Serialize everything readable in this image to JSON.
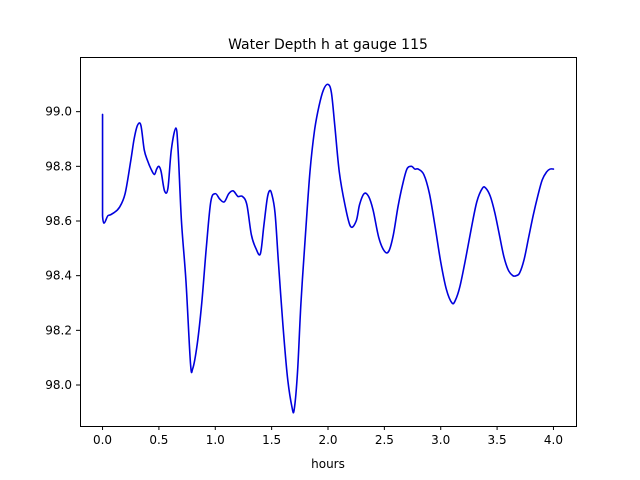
{
  "chart_data": {
    "type": "line",
    "title": "Water Depth h at gauge 115",
    "xlabel": "hours",
    "ylabel": "",
    "xlim": [
      -0.2,
      4.2
    ],
    "ylim": [
      97.85,
      99.2
    ],
    "xticks": [
      0.0,
      0.5,
      1.0,
      1.5,
      2.0,
      2.5,
      3.0,
      3.5,
      4.0
    ],
    "xtick_labels": [
      "0.0",
      "0.5",
      "1.0",
      "1.5",
      "2.0",
      "2.5",
      "3.0",
      "3.5",
      "4.0"
    ],
    "yticks": [
      98.0,
      98.2,
      98.4,
      98.6,
      98.8,
      99.0
    ],
    "ytick_labels": [
      "98.0",
      "98.2",
      "98.4",
      "98.6",
      "98.8",
      "99.0"
    ],
    "grid": false,
    "series": [
      {
        "color": "#0000dd",
        "x": [
          0.0,
          0.0,
          0.05,
          0.1,
          0.15,
          0.2,
          0.25,
          0.28,
          0.31,
          0.34,
          0.37,
          0.4,
          0.43,
          0.46,
          0.48,
          0.5,
          0.52,
          0.55,
          0.58,
          0.61,
          0.65,
          0.67,
          0.7,
          0.74,
          0.78,
          0.8,
          0.84,
          0.88,
          0.92,
          0.96,
          1.0,
          1.04,
          1.08,
          1.12,
          1.16,
          1.2,
          1.24,
          1.28,
          1.32,
          1.36,
          1.4,
          1.43,
          1.46,
          1.48,
          1.5,
          1.53,
          1.56,
          1.6,
          1.64,
          1.68,
          1.7,
          1.73,
          1.76,
          1.8,
          1.84,
          1.88,
          1.92,
          1.96,
          2.0,
          2.03,
          2.06,
          2.1,
          2.15,
          2.2,
          2.25,
          2.28,
          2.32,
          2.36,
          2.4,
          2.45,
          2.5,
          2.54,
          2.58,
          2.62,
          2.66,
          2.7,
          2.74,
          2.77,
          2.8,
          2.85,
          2.9,
          2.95,
          3.0,
          3.05,
          3.1,
          3.13,
          3.17,
          3.22,
          3.27,
          3.32,
          3.37,
          3.4,
          3.44,
          3.48,
          3.52,
          3.56,
          3.6,
          3.64,
          3.67,
          3.7,
          3.74,
          3.78,
          3.82,
          3.86,
          3.9,
          3.94,
          3.97,
          4.0
        ],
        "y": [
          98.99,
          98.62,
          98.62,
          98.63,
          98.65,
          98.7,
          98.82,
          98.9,
          98.95,
          98.95,
          98.86,
          98.82,
          98.79,
          98.77,
          98.79,
          98.8,
          98.78,
          98.71,
          98.72,
          98.86,
          98.94,
          98.86,
          98.6,
          98.38,
          98.08,
          98.06,
          98.15,
          98.3,
          98.5,
          98.67,
          98.7,
          98.68,
          98.67,
          98.7,
          98.71,
          98.69,
          98.69,
          98.66,
          98.55,
          98.5,
          98.48,
          98.58,
          98.68,
          98.71,
          98.7,
          98.63,
          98.45,
          98.22,
          98.03,
          97.92,
          97.91,
          98.05,
          98.3,
          98.55,
          98.78,
          98.93,
          99.02,
          99.08,
          99.1,
          99.07,
          98.95,
          98.78,
          98.66,
          98.58,
          98.6,
          98.66,
          98.7,
          98.69,
          98.64,
          98.54,
          98.49,
          98.49,
          98.55,
          98.65,
          98.73,
          98.79,
          98.8,
          98.79,
          98.79,
          98.77,
          98.7,
          98.58,
          98.45,
          98.35,
          98.3,
          98.31,
          98.36,
          98.46,
          98.57,
          98.67,
          98.72,
          98.72,
          98.69,
          98.63,
          98.55,
          98.47,
          98.42,
          98.4,
          98.4,
          98.41,
          98.46,
          98.54,
          98.62,
          98.69,
          98.75,
          98.78,
          98.79,
          98.79
        ]
      }
    ]
  }
}
